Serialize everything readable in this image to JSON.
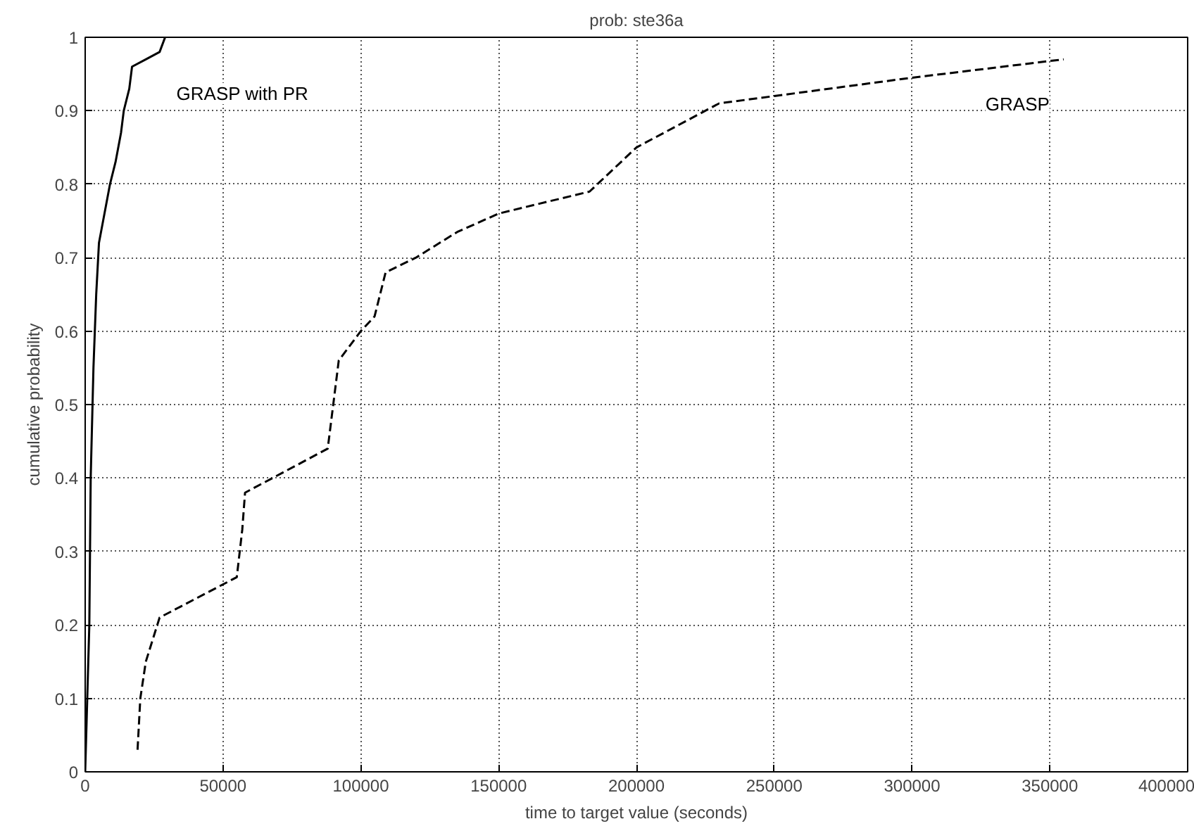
{
  "chart_data": {
    "type": "line",
    "title": "prob: ste36a",
    "xlabel": "time to target value (seconds)",
    "ylabel": "cumulative probability",
    "xlim": [
      0,
      400000
    ],
    "xticks": [
      0,
      50000,
      100000,
      150000,
      200000,
      250000,
      300000,
      350000,
      400000
    ],
    "ylim": [
      0,
      1
    ],
    "yticks": [
      0,
      0.1,
      0.2,
      0.3,
      0.4,
      0.5,
      0.6,
      0.7,
      0.8,
      0.9,
      1
    ],
    "grid": true,
    "marker": "none",
    "series": [
      {
        "name": "GRASP with PR",
        "color": "#000000",
        "line_style": "solid",
        "x": [
          0,
          1500,
          2000,
          3000,
          4000,
          5000,
          7000,
          9000,
          11000,
          13000,
          14000,
          16000,
          17000,
          22000,
          27000,
          29000
        ],
        "values": [
          0,
          0.2,
          0.4,
          0.55,
          0.65,
          0.72,
          0.76,
          0.8,
          0.83,
          0.87,
          0.9,
          0.93,
          0.96,
          0.97,
          0.98,
          1.0
        ]
      },
      {
        "name": "GRASP",
        "color": "#000000",
        "line_style": "dashed",
        "x": [
          19000,
          20000,
          22000,
          27000,
          55000,
          57000,
          58000,
          88000,
          92000,
          100000,
          105000,
          109000,
          120000,
          135000,
          150000,
          183000,
          200000,
          230000,
          250000,
          300000,
          355000
        ],
        "values": [
          0.03,
          0.1,
          0.15,
          0.21,
          0.265,
          0.33,
          0.38,
          0.44,
          0.56,
          0.6,
          0.62,
          0.68,
          0.7,
          0.735,
          0.76,
          0.79,
          0.85,
          0.91,
          0.92,
          0.945,
          0.97
        ]
      }
    ]
  }
}
